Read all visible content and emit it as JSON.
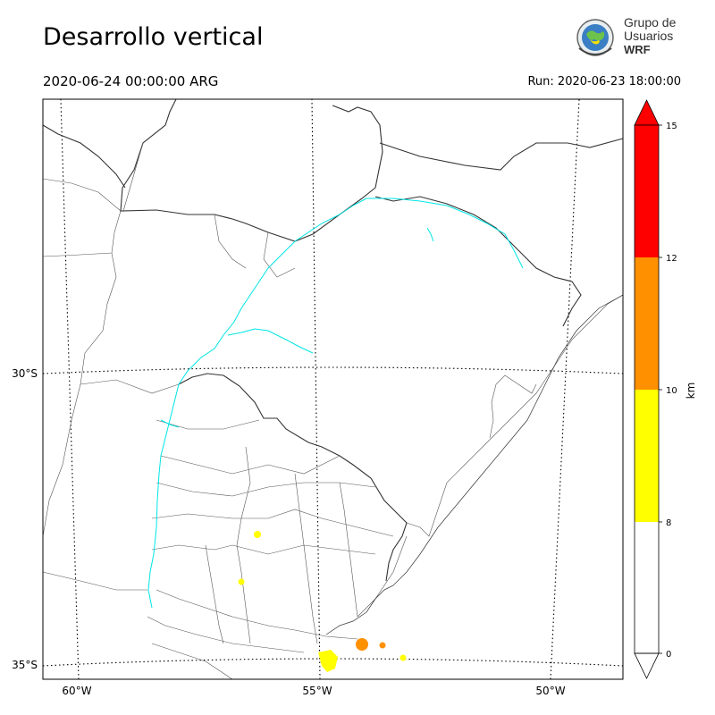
{
  "header": {
    "title": "Desarrollo vertical",
    "valid_time": "2020-06-24 00:00:00 ARG",
    "run_time": "Run: 2020-06-23 18:00:00"
  },
  "logo": {
    "line1": "Grupo de",
    "line2": "Usuarios",
    "line3": "WRF"
  },
  "map": {
    "lon_labels": [
      "60°W",
      "55°W",
      "50°W"
    ],
    "lat_labels": [
      "30°S",
      "35°S"
    ]
  },
  "colorbar": {
    "unit": "km",
    "ticks": [
      "0",
      "8",
      "10",
      "12",
      "15"
    ],
    "colors": [
      "#ffffff",
      "#ffff00",
      "#ff9000",
      "#ff0000"
    ]
  }
}
